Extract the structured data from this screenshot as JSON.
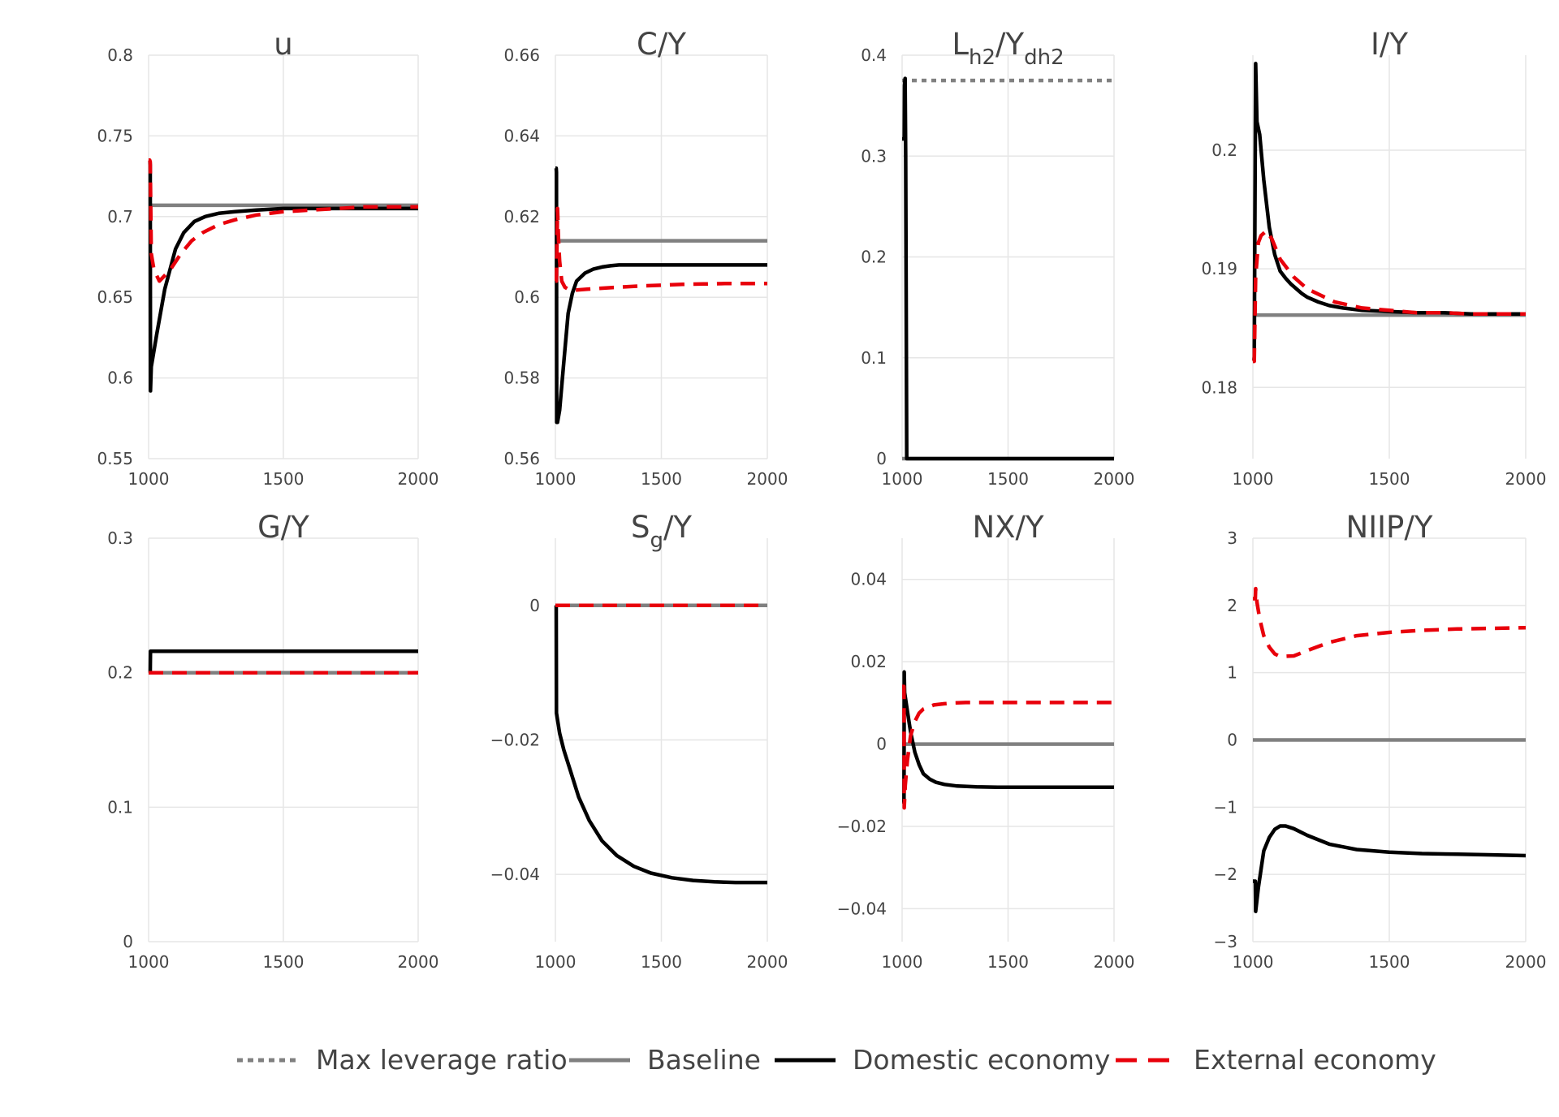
{
  "colors": {
    "baseline": "#808080",
    "domestic": "#000000",
    "external": "#e8000b",
    "max_leverage": "#808080",
    "grid": "#e6e6e6",
    "text": "#444444"
  },
  "legend": [
    {
      "key": "max_leverage",
      "label": "Max leverage ratio",
      "style": "dotted"
    },
    {
      "key": "baseline",
      "label": "Baseline",
      "style": "solid"
    },
    {
      "key": "domestic",
      "label": "Domestic economy",
      "style": "solid"
    },
    {
      "key": "external",
      "label": "External economy",
      "style": "dashed"
    }
  ],
  "chart_data": [
    {
      "id": "u",
      "type": "line",
      "title": "u",
      "title_sub": "",
      "xlim": [
        1000,
        2000
      ],
      "ylim": [
        0.55,
        0.8
      ],
      "xticks": [
        1000,
        1500,
        2000
      ],
      "xtick_labels": [
        "1000",
        "1500",
        "2000"
      ],
      "yticks": [
        0.55,
        0.6,
        0.65,
        0.7,
        0.75,
        0.8
      ],
      "ytick_labels": [
        "0.55",
        "0.6",
        "0.65",
        "0.7",
        "0.75",
        "0.8"
      ],
      "grid": true,
      "series": [
        {
          "key": "baseline",
          "x": [
            1000,
            2000
          ],
          "y": [
            0.707,
            0.707
          ]
        },
        {
          "key": "domestic",
          "x": [
            1000,
            1005,
            1006,
            1007,
            1010,
            1015,
            1030,
            1060,
            1100,
            1130,
            1170,
            1210,
            1260,
            1320,
            1400,
            1500,
            1600,
            1700,
            1800,
            1900,
            2000
          ],
          "y": [
            0.734,
            0.734,
            0.732,
            0.592,
            0.607,
            0.612,
            0.627,
            0.655,
            0.68,
            0.69,
            0.697,
            0.7,
            0.702,
            0.703,
            0.704,
            0.705,
            0.705,
            0.705,
            0.705,
            0.705,
            0.705
          ]
        },
        {
          "key": "external",
          "x": [
            1000,
            1004,
            1006,
            1010,
            1020,
            1040,
            1080,
            1120,
            1160,
            1200,
            1260,
            1320,
            1400,
            1500,
            1600,
            1700,
            1800,
            1900,
            2000
          ],
          "y": [
            0.735,
            0.735,
            0.734,
            0.677,
            0.667,
            0.66,
            0.667,
            0.677,
            0.685,
            0.69,
            0.695,
            0.698,
            0.701,
            0.703,
            0.704,
            0.705,
            0.706,
            0.706,
            0.706
          ]
        }
      ]
    },
    {
      "id": "cy",
      "type": "line",
      "title": "C/Y",
      "title_sub": "",
      "xlim": [
        1000,
        2000
      ],
      "ylim": [
        0.56,
        0.66
      ],
      "xticks": [
        1000,
        1500,
        2000
      ],
      "xtick_labels": [
        "1000",
        "1500",
        "2000"
      ],
      "yticks": [
        0.56,
        0.58,
        0.6,
        0.62,
        0.64,
        0.66
      ],
      "ytick_labels": [
        "0.56",
        "0.58",
        "0.6",
        "0.62",
        "0.64",
        "0.66"
      ],
      "grid": true,
      "series": [
        {
          "key": "baseline",
          "x": [
            1000,
            2000
          ],
          "y": [
            0.614,
            0.614
          ]
        },
        {
          "key": "domestic",
          "x": [
            1000,
            1004,
            1005,
            1006,
            1010,
            1020,
            1040,
            1060,
            1080,
            1100,
            1140,
            1180,
            1220,
            1260,
            1300,
            1380,
            1500,
            1600,
            1700,
            1800,
            1900,
            2000
          ],
          "y": [
            0.632,
            0.632,
            0.631,
            0.569,
            0.569,
            0.572,
            0.584,
            0.596,
            0.601,
            0.604,
            0.606,
            0.607,
            0.6075,
            0.6078,
            0.608,
            0.608,
            0.608,
            0.608,
            0.608,
            0.608,
            0.608,
            0.608
          ]
        },
        {
          "key": "external",
          "x": [
            1000,
            1005,
            1010,
            1015,
            1020,
            1030,
            1045,
            1060,
            1080,
            1100,
            1150,
            1200,
            1300,
            1400,
            1500,
            1600,
            1700,
            1800,
            1900,
            2000
          ],
          "y": [
            0.604,
            0.604,
            0.622,
            0.614,
            0.609,
            0.604,
            0.6025,
            0.602,
            0.6018,
            0.6018,
            0.602,
            0.6022,
            0.6025,
            0.6028,
            0.603,
            0.6032,
            0.6033,
            0.6034,
            0.6034,
            0.6034
          ]
        }
      ]
    },
    {
      "id": "lhy",
      "type": "line",
      "title": "L",
      "title_sub": "h2",
      "title_mid": "/Y",
      "title_sub2": "dh2",
      "xlim": [
        1000,
        2000
      ],
      "ylim": [
        0,
        0.4
      ],
      "xticks": [
        1000,
        1500,
        2000
      ],
      "xtick_labels": [
        "1000",
        "1500",
        "2000"
      ],
      "yticks": [
        0,
        0.1,
        0.2,
        0.3,
        0.4
      ],
      "ytick_labels": [
        "0",
        "0.1",
        "0.2",
        "0.3",
        "0.4"
      ],
      "grid": true,
      "series": [
        {
          "key": "max_leverage",
          "x": [
            1000,
            2000
          ],
          "y": [
            0.375,
            0.375
          ]
        },
        {
          "key": "baseline",
          "x": [
            1000,
            2000
          ],
          "y": [
            0,
            0
          ]
        },
        {
          "key": "domestic",
          "x": [
            1000,
            1010,
            1011,
            1014,
            1017,
            1022,
            2000
          ],
          "y": [
            0.317,
            0.317,
            0.37,
            0.377,
            0.3,
            0,
            0
          ]
        }
      ]
    },
    {
      "id": "iy",
      "type": "line",
      "title": "I/Y",
      "title_sub": "",
      "xlim": [
        1000,
        2000
      ],
      "ylim": [
        0.174,
        0.208
      ],
      "xticks": [
        1000,
        1500,
        2000
      ],
      "xtick_labels": [
        "1000",
        "1500",
        "2000"
      ],
      "yticks": [
        0.18,
        0.19,
        0.2
      ],
      "ytick_labels": [
        "0.18",
        "0.19",
        "0.2"
      ],
      "grid": true,
      "series": [
        {
          "key": "baseline",
          "x": [
            1000,
            2000
          ],
          "y": [
            0.1861,
            0.1861
          ]
        },
        {
          "key": "domestic",
          "x": [
            1000,
            1004,
            1005,
            1010,
            1015,
            1025,
            1040,
            1060,
            1080,
            1100,
            1120,
            1140,
            1160,
            1180,
            1200,
            1240,
            1280,
            1330,
            1400,
            1500,
            1600,
            1700,
            1800,
            1900,
            2000
          ],
          "y": [
            0.1823,
            0.1823,
            0.1826,
            0.2073,
            0.2024,
            0.2013,
            0.1975,
            0.1935,
            0.1912,
            0.1898,
            0.1892,
            0.1887,
            0.1883,
            0.1879,
            0.1876,
            0.1872,
            0.1869,
            0.1867,
            0.1865,
            0.1864,
            0.1863,
            0.1863,
            0.1862,
            0.1862,
            0.1862
          ]
        },
        {
          "key": "external",
          "x": [
            1000,
            1005,
            1010,
            1020,
            1030,
            1050,
            1070,
            1100,
            1150,
            1200,
            1300,
            1400,
            1500,
            1600,
            1700,
            1800,
            1900,
            2000
          ],
          "y": [
            0.1822,
            0.1822,
            0.1893,
            0.1922,
            0.1928,
            0.1932,
            0.1925,
            0.1908,
            0.1893,
            0.1883,
            0.1872,
            0.1867,
            0.1865,
            0.1863,
            0.1863,
            0.1862,
            0.1862,
            0.1862
          ]
        }
      ]
    },
    {
      "id": "gy",
      "type": "line",
      "title": "G/Y",
      "title_sub": "",
      "xlim": [
        1000,
        2000
      ],
      "ylim": [
        0,
        0.3
      ],
      "xticks": [
        1000,
        1500,
        2000
      ],
      "xtick_labels": [
        "1000",
        "1500",
        "2000"
      ],
      "yticks": [
        0,
        0.1,
        0.2,
        0.3
      ],
      "ytick_labels": [
        "0",
        "0.1",
        "0.2",
        "0.3"
      ],
      "grid": true,
      "series": [
        {
          "key": "baseline",
          "x": [
            1000,
            2000
          ],
          "y": [
            0.2,
            0.2
          ]
        },
        {
          "key": "domestic",
          "x": [
            1000,
            1006,
            1007,
            2000
          ],
          "y": [
            0.2,
            0.2,
            0.216,
            0.216
          ]
        },
        {
          "key": "external",
          "x": [
            1000,
            2000
          ],
          "y": [
            0.2,
            0.2
          ]
        }
      ]
    },
    {
      "id": "sgy",
      "type": "line",
      "title": "S",
      "title_sub": "g",
      "title_mid": "/Y",
      "title_sub2": "",
      "xlim": [
        1000,
        2000
      ],
      "ylim": [
        -0.05,
        0.01
      ],
      "xticks": [
        1000,
        1500,
        2000
      ],
      "xtick_labels": [
        "1000",
        "1500",
        "2000"
      ],
      "yticks": [
        -0.04,
        -0.02,
        0
      ],
      "ytick_labels": [
        "−0.04",
        "−0.02",
        "0"
      ],
      "grid": true,
      "series": [
        {
          "key": "baseline",
          "x": [
            1000,
            2000
          ],
          "y": [
            0,
            0
          ]
        },
        {
          "key": "domestic",
          "x": [
            1000,
            1004,
            1005,
            1020,
            1040,
            1070,
            1110,
            1160,
            1220,
            1290,
            1370,
            1450,
            1550,
            1650,
            1750,
            1850,
            2000
          ],
          "y": [
            0,
            0,
            -0.016,
            -0.019,
            -0.0215,
            -0.0245,
            -0.0285,
            -0.032,
            -0.035,
            -0.0372,
            -0.0388,
            -0.0398,
            -0.0405,
            -0.0409,
            -0.0411,
            -0.0412,
            -0.0412
          ]
        },
        {
          "key": "external",
          "x": [
            1000,
            2000
          ],
          "y": [
            0,
            0
          ]
        }
      ]
    },
    {
      "id": "nxy",
      "type": "line",
      "title": "NX/Y",
      "title_sub": "",
      "xlim": [
        1000,
        2000
      ],
      "ylim": [
        -0.048,
        0.05
      ],
      "xticks": [
        1000,
        1500,
        2000
      ],
      "xtick_labels": [
        "1000",
        "1500",
        "2000"
      ],
      "yticks": [
        -0.04,
        -0.02,
        0,
        0.02,
        0.04
      ],
      "ytick_labels": [
        "−0.04",
        "−0.02",
        "0",
        "0.02",
        "0.04"
      ],
      "grid": true,
      "series": [
        {
          "key": "baseline",
          "x": [
            1000,
            2000
          ],
          "y": [
            0,
            0
          ]
        },
        {
          "key": "domestic",
          "x": [
            1000,
            1009,
            1010,
            1012,
            1025,
            1040,
            1060,
            1080,
            1100,
            1130,
            1160,
            1200,
            1260,
            1350,
            1450,
            1550,
            1700,
            1850,
            2000
          ],
          "y": [
            -0.014,
            -0.014,
            0.0175,
            0.0125,
            0.008,
            0.003,
            -0.002,
            -0.005,
            -0.0072,
            -0.0085,
            -0.0093,
            -0.0098,
            -0.0102,
            -0.0104,
            -0.0105,
            -0.0105,
            -0.0105,
            -0.0105,
            -0.0105
          ]
        },
        {
          "key": "external",
          "x": [
            1000,
            1009,
            1010,
            1015,
            1025,
            1040,
            1060,
            1080,
            1100,
            1150,
            1200,
            1250,
            1300,
            1400,
            1500,
            1600,
            1700,
            1800,
            1900,
            2000
          ],
          "y": [
            0.014,
            0.014,
            -0.0155,
            -0.01,
            -0.004,
            0.002,
            0.0055,
            0.0075,
            0.0085,
            0.0095,
            0.0098,
            0.01,
            0.0101,
            0.0101,
            0.0101,
            0.0101,
            0.0101,
            0.0101,
            0.0101,
            0.0101
          ]
        }
      ]
    },
    {
      "id": "niipy",
      "type": "line",
      "title": "NIIP/Y",
      "title_sub": "",
      "xlim": [
        1000,
        2000
      ],
      "ylim": [
        -3,
        3
      ],
      "xticks": [
        1000,
        1500,
        2000
      ],
      "xtick_labels": [
        "1000",
        "1500",
        "2000"
      ],
      "yticks": [
        -3,
        -2,
        -1,
        0,
        1,
        2,
        3
      ],
      "ytick_labels": [
        "−3",
        "−2",
        "−1",
        "0",
        "1",
        "2",
        "3"
      ],
      "grid": true,
      "series": [
        {
          "key": "baseline",
          "x": [
            1000,
            2000
          ],
          "y": [
            0,
            0
          ]
        },
        {
          "key": "domestic",
          "x": [
            1000,
            1009,
            1010,
            1020,
            1040,
            1060,
            1080,
            1100,
            1120,
            1150,
            1200,
            1280,
            1380,
            1500,
            1620,
            1750,
            1880,
            2000
          ],
          "y": [
            -2.1,
            -2.1,
            -2.55,
            -2.2,
            -1.65,
            -1.45,
            -1.33,
            -1.28,
            -1.28,
            -1.32,
            -1.42,
            -1.55,
            -1.63,
            -1.67,
            -1.69,
            -1.7,
            -1.71,
            -1.72
          ]
        },
        {
          "key": "external",
          "x": [
            1000,
            1009,
            1010,
            1015,
            1025,
            1040,
            1060,
            1080,
            1100,
            1150,
            1200,
            1280,
            1380,
            1500,
            1620,
            1750,
            1880,
            2000
          ],
          "y": [
            2.1,
            2.1,
            2.25,
            2.05,
            1.8,
            1.55,
            1.38,
            1.28,
            1.24,
            1.25,
            1.33,
            1.45,
            1.55,
            1.6,
            1.63,
            1.65,
            1.66,
            1.67
          ]
        }
      ]
    }
  ]
}
